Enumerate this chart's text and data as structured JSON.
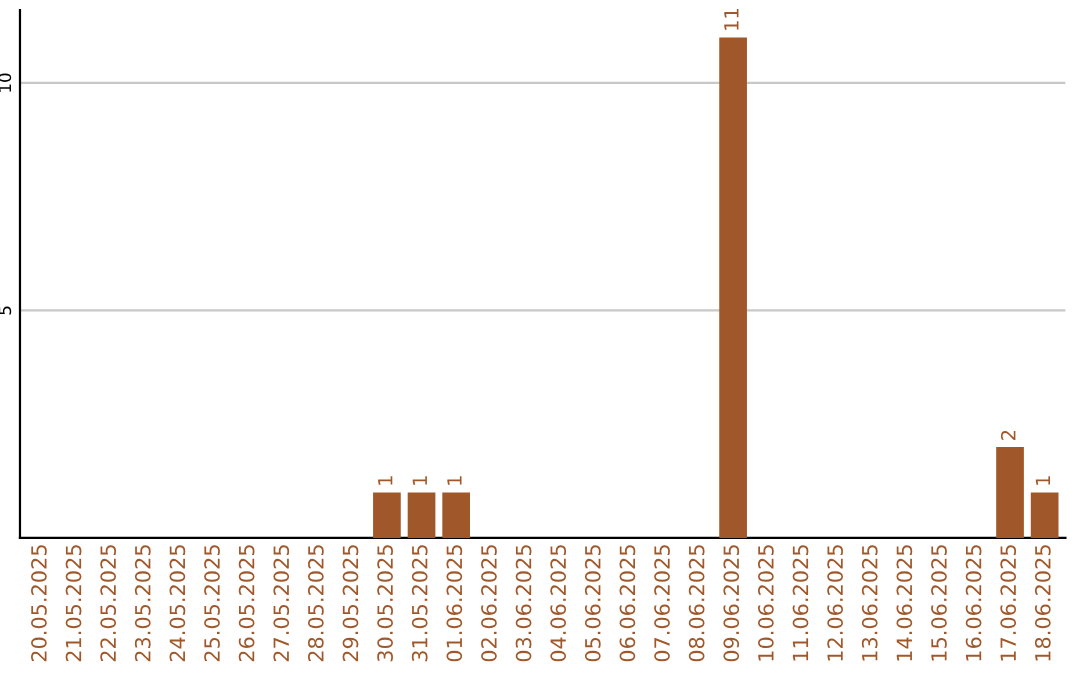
{
  "chart_data": {
    "type": "bar",
    "categories": [
      "20.05.2025",
      "21.05.2025",
      "22.05.2025",
      "23.05.2025",
      "24.05.2025",
      "25.05.2025",
      "26.05.2025",
      "27.05.2025",
      "28.05.2025",
      "29.05.2025",
      "30.05.2025",
      "31.05.2025",
      "01.06.2025",
      "02.06.2025",
      "03.06.2025",
      "04.06.2025",
      "05.06.2025",
      "06.06.2025",
      "07.06.2025",
      "08.06.2025",
      "09.06.2025",
      "10.06.2025",
      "11.06.2025",
      "12.06.2025",
      "13.06.2025",
      "14.06.2025",
      "15.06.2025",
      "16.06.2025",
      "17.06.2025",
      "18.06.2025"
    ],
    "values": [
      0,
      0,
      0,
      0,
      0,
      0,
      0,
      0,
      0,
      0,
      1,
      1,
      1,
      0,
      0,
      0,
      0,
      0,
      0,
      0,
      11,
      0,
      0,
      0,
      0,
      0,
      0,
      0,
      2,
      1
    ],
    "value_labels": [
      null,
      null,
      null,
      null,
      null,
      null,
      null,
      null,
      null,
      null,
      "1",
      "1",
      "1",
      null,
      null,
      null,
      null,
      null,
      null,
      null,
      "11",
      null,
      null,
      null,
      null,
      null,
      null,
      null,
      "2",
      "1"
    ],
    "color": "#a0582a",
    "ylim": [
      0,
      11.6
    ],
    "yticks": [
      5,
      10
    ],
    "grid": "y",
    "legend": false
  }
}
